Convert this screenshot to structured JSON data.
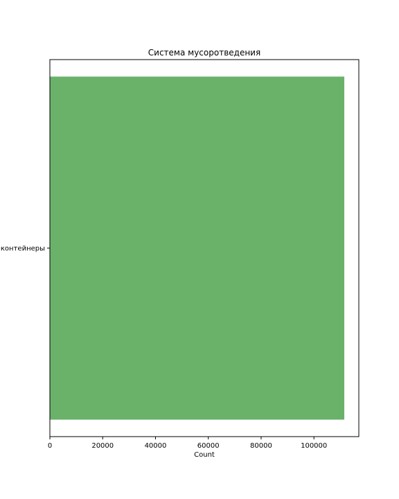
{
  "chart_data": {
    "type": "bar",
    "orientation": "horizontal",
    "title": "Система мусоротведения",
    "xlabel": "Count",
    "ylabel": "",
    "categories": [
      "контейнеры"
    ],
    "values": [
      111500
    ],
    "xlim": [
      0,
      117000
    ],
    "xticks": [
      0,
      20000,
      40000,
      60000,
      80000,
      100000
    ],
    "xtick_labels": [
      "0",
      "20000",
      "40000",
      "60000",
      "80000",
      "100000"
    ],
    "grid": false,
    "legend": "none",
    "bar_color": "#6ab26a"
  }
}
